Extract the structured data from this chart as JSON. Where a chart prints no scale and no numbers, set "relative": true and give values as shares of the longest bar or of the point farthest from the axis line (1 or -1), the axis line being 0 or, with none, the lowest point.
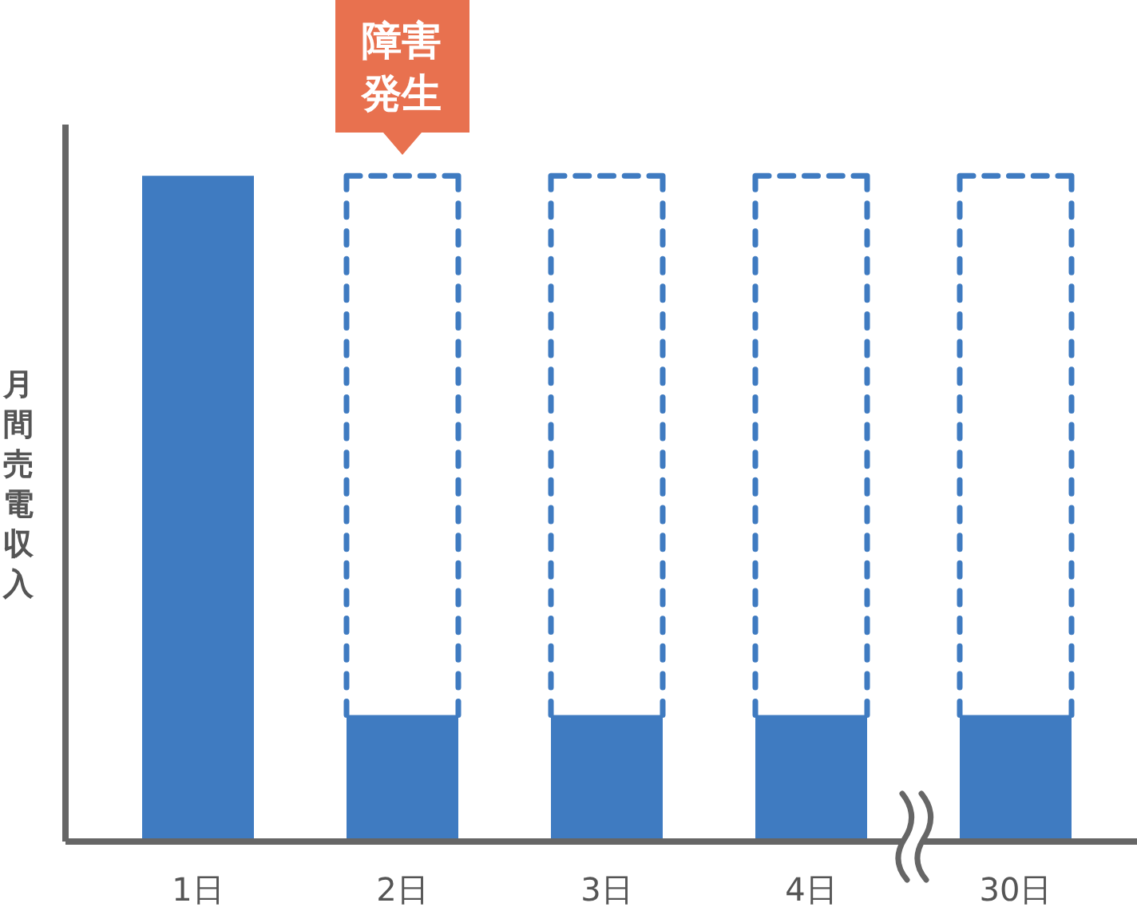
{
  "chart_data": {
    "type": "bar",
    "ylabel": "月間売電収入",
    "categories": [
      "1日",
      "2日",
      "3日",
      "4日",
      "30日"
    ],
    "relative": true,
    "stacked": true,
    "series": [
      {
        "color": "#3f7bc1",
        "values": [
          1,
          0.19,
          0.19,
          0.19,
          0.19
        ]
      },
      {
        "color": "#3f7bc1",
        "line_style": "dashed",
        "values": [
          null,
          0.81,
          0.81,
          0.81,
          0.81
        ]
      }
    ],
    "annotations": [
      "障害発生"
    ],
    "tick_labels": "x"
  }
}
